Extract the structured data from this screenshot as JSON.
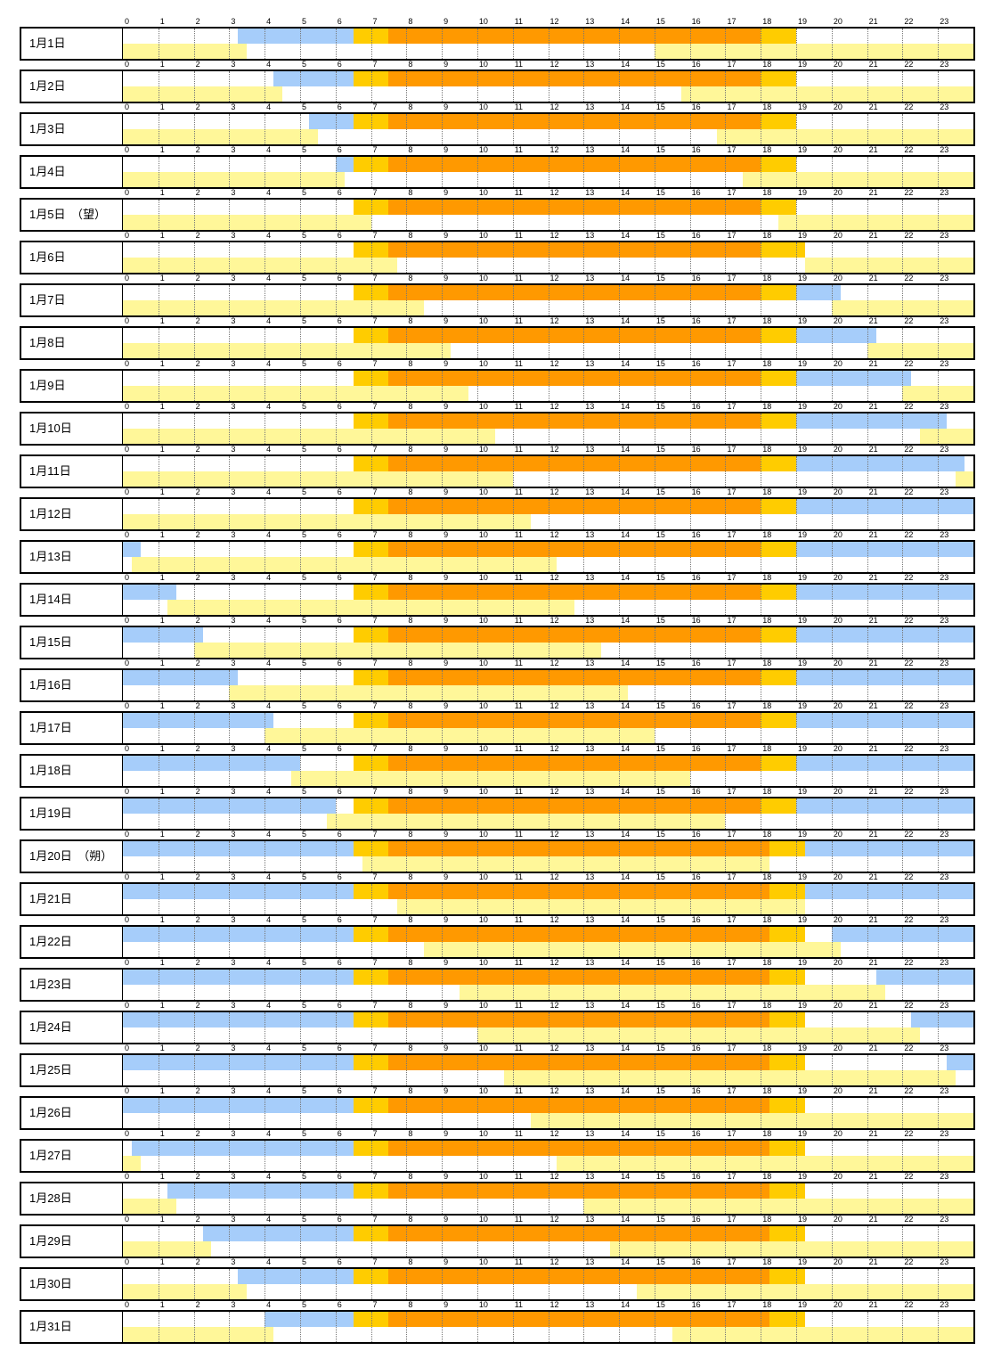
{
  "chart_data": {
    "type": "timeline",
    "hours": [
      "0",
      "1",
      "2",
      "3",
      "4",
      "5",
      "6",
      "7",
      "8",
      "9",
      "10",
      "11",
      "12",
      "13",
      "14",
      "15",
      "16",
      "17",
      "18",
      "19",
      "20",
      "21",
      "22",
      "23"
    ],
    "colors": {
      "moon": "#a6cdfa",
      "twilight": "#ffcc00",
      "day": "#ff9900",
      "moonlight": "#fff799"
    },
    "days": [
      {
        "label": "1月1日",
        "top": [
          [
            "moon",
            3.25,
            6.5
          ],
          [
            "twilight",
            6.5,
            7.5
          ],
          [
            "day",
            7.5,
            18.0
          ],
          [
            "twilight",
            18.0,
            19.0
          ]
        ],
        "bottom": [
          [
            "moonlight",
            0,
            3.5
          ],
          [
            "moonlight",
            15.0,
            24
          ]
        ]
      },
      {
        "label": "1月2日",
        "top": [
          [
            "moon",
            4.25,
            6.5
          ],
          [
            "twilight",
            6.5,
            7.5
          ],
          [
            "day",
            7.5,
            18.0
          ],
          [
            "twilight",
            18.0,
            19.0
          ]
        ],
        "bottom": [
          [
            "moonlight",
            0,
            4.5
          ],
          [
            "moonlight",
            15.75,
            24
          ]
        ]
      },
      {
        "label": "1月3日",
        "top": [
          [
            "moon",
            5.25,
            6.5
          ],
          [
            "twilight",
            6.5,
            7.5
          ],
          [
            "day",
            7.5,
            18.0
          ],
          [
            "twilight",
            18.0,
            19.0
          ]
        ],
        "bottom": [
          [
            "moonlight",
            0,
            5.5
          ],
          [
            "moonlight",
            16.75,
            24
          ]
        ]
      },
      {
        "label": "1月4日",
        "top": [
          [
            "moon",
            6.0,
            6.5
          ],
          [
            "twilight",
            6.5,
            7.5
          ],
          [
            "day",
            7.5,
            18.0
          ],
          [
            "twilight",
            18.0,
            19.0
          ]
        ],
        "bottom": [
          [
            "moonlight",
            0,
            6.25
          ],
          [
            "moonlight",
            17.5,
            24
          ]
        ]
      },
      {
        "label": "1月5日　（望）",
        "top": [
          [
            "twilight",
            6.5,
            7.5
          ],
          [
            "day",
            7.5,
            18.0
          ],
          [
            "twilight",
            18.0,
            19.0
          ]
        ],
        "bottom": [
          [
            "moonlight",
            0,
            7.0
          ],
          [
            "moonlight",
            18.5,
            24
          ]
        ]
      },
      {
        "label": "1月6日",
        "top": [
          [
            "twilight",
            6.5,
            7.5
          ],
          [
            "day",
            7.5,
            18.0
          ],
          [
            "twilight",
            18.0,
            19.25
          ]
        ],
        "bottom": [
          [
            "moonlight",
            0,
            7.75
          ],
          [
            "moonlight",
            19.25,
            24
          ]
        ]
      },
      {
        "label": "1月7日",
        "top": [
          [
            "twilight",
            6.5,
            7.5
          ],
          [
            "day",
            7.5,
            18.0
          ],
          [
            "twilight",
            18.0,
            19.0
          ],
          [
            "moon",
            19.0,
            20.25
          ]
        ],
        "bottom": [
          [
            "moonlight",
            0,
            8.5
          ],
          [
            "moonlight",
            20.0,
            24
          ]
        ]
      },
      {
        "label": "1月8日",
        "top": [
          [
            "twilight",
            6.5,
            7.5
          ],
          [
            "day",
            7.5,
            18.0
          ],
          [
            "twilight",
            18.0,
            19.0
          ],
          [
            "moon",
            19.0,
            21.25
          ]
        ],
        "bottom": [
          [
            "moonlight",
            0,
            9.25
          ],
          [
            "moonlight",
            21.0,
            24
          ]
        ]
      },
      {
        "label": "1月9日",
        "top": [
          [
            "twilight",
            6.5,
            7.5
          ],
          [
            "day",
            7.5,
            18.0
          ],
          [
            "twilight",
            18.0,
            19.0
          ],
          [
            "moon",
            19.0,
            22.25
          ]
        ],
        "bottom": [
          [
            "moonlight",
            0,
            9.75
          ],
          [
            "moonlight",
            22.0,
            24
          ]
        ]
      },
      {
        "label": "1月10日",
        "top": [
          [
            "twilight",
            6.5,
            7.5
          ],
          [
            "day",
            7.5,
            18.0
          ],
          [
            "twilight",
            18.0,
            19.0
          ],
          [
            "moon",
            19.0,
            23.25
          ]
        ],
        "bottom": [
          [
            "moonlight",
            0,
            10.5
          ],
          [
            "moonlight",
            22.5,
            24
          ]
        ]
      },
      {
        "label": "1月11日",
        "top": [
          [
            "twilight",
            6.5,
            7.5
          ],
          [
            "day",
            7.5,
            18.0
          ],
          [
            "twilight",
            18.0,
            19.0
          ],
          [
            "moon",
            19.0,
            23.75
          ]
        ],
        "bottom": [
          [
            "moonlight",
            0,
            11.0
          ],
          [
            "moonlight",
            23.5,
            24
          ]
        ]
      },
      {
        "label": "1月12日",
        "top": [
          [
            "twilight",
            6.5,
            7.5
          ],
          [
            "day",
            7.5,
            18.0
          ],
          [
            "twilight",
            18.0,
            19.0
          ],
          [
            "moon",
            19.0,
            24
          ]
        ],
        "bottom": [
          [
            "moonlight",
            0,
            11.5
          ]
        ]
      },
      {
        "label": "1月13日",
        "top": [
          [
            "moon",
            0,
            0.5
          ],
          [
            "twilight",
            6.5,
            7.5
          ],
          [
            "day",
            7.5,
            18.0
          ],
          [
            "twilight",
            18.0,
            19.0
          ],
          [
            "moon",
            19.0,
            24
          ]
        ],
        "bottom": [
          [
            "moonlight",
            0.25,
            12.25
          ]
        ]
      },
      {
        "label": "1月14日",
        "top": [
          [
            "moon",
            0,
            1.5
          ],
          [
            "twilight",
            6.5,
            7.5
          ],
          [
            "day",
            7.5,
            18.0
          ],
          [
            "twilight",
            18.0,
            19.0
          ],
          [
            "moon",
            19.0,
            24
          ]
        ],
        "bottom": [
          [
            "moonlight",
            1.25,
            12.75
          ]
        ]
      },
      {
        "label": "1月15日",
        "top": [
          [
            "moon",
            0,
            2.25
          ],
          [
            "twilight",
            6.5,
            7.5
          ],
          [
            "day",
            7.5,
            18.0
          ],
          [
            "twilight",
            18.0,
            19.0
          ],
          [
            "moon",
            19.0,
            24
          ]
        ],
        "bottom": [
          [
            "moonlight",
            2.0,
            13.5
          ]
        ]
      },
      {
        "label": "1月16日",
        "top": [
          [
            "moon",
            0,
            3.25
          ],
          [
            "twilight",
            6.5,
            7.5
          ],
          [
            "day",
            7.5,
            18.0
          ],
          [
            "twilight",
            18.0,
            19.0
          ],
          [
            "moon",
            19.0,
            24
          ]
        ],
        "bottom": [
          [
            "moonlight",
            3.0,
            14.25
          ]
        ]
      },
      {
        "label": "1月17日",
        "top": [
          [
            "moon",
            0,
            4.25
          ],
          [
            "twilight",
            6.5,
            7.5
          ],
          [
            "day",
            7.5,
            18.0
          ],
          [
            "twilight",
            18.0,
            19.0
          ],
          [
            "moon",
            19.0,
            24
          ]
        ],
        "bottom": [
          [
            "moonlight",
            4.0,
            15.0
          ]
        ]
      },
      {
        "label": "1月18日",
        "top": [
          [
            "moon",
            0,
            5.0
          ],
          [
            "twilight",
            6.5,
            7.5
          ],
          [
            "day",
            7.5,
            18.0
          ],
          [
            "twilight",
            18.0,
            19.0
          ],
          [
            "moon",
            19.0,
            24
          ]
        ],
        "bottom": [
          [
            "moonlight",
            4.75,
            16.0
          ]
        ]
      },
      {
        "label": "1月19日",
        "top": [
          [
            "moon",
            0,
            6.0
          ],
          [
            "twilight",
            6.5,
            7.5
          ],
          [
            "day",
            7.5,
            18.0
          ],
          [
            "twilight",
            18.0,
            19.0
          ],
          [
            "moon",
            19.0,
            24
          ]
        ],
        "bottom": [
          [
            "moonlight",
            5.75,
            17.0
          ]
        ]
      },
      {
        "label": "1月20日　（朔）",
        "top": [
          [
            "moon",
            0,
            6.5
          ],
          [
            "twilight",
            6.5,
            7.5
          ],
          [
            "day",
            7.5,
            18.25
          ],
          [
            "twilight",
            18.25,
            19.25
          ],
          [
            "moon",
            19.25,
            24
          ]
        ],
        "bottom": [
          [
            "moonlight",
            6.75,
            18.25
          ]
        ]
      },
      {
        "label": "1月21日",
        "top": [
          [
            "moon",
            0,
            6.5
          ],
          [
            "twilight",
            6.5,
            7.5
          ],
          [
            "day",
            7.5,
            18.25
          ],
          [
            "twilight",
            18.25,
            19.25
          ],
          [
            "moon",
            19.25,
            24
          ]
        ],
        "bottom": [
          [
            "moonlight",
            7.75,
            19.25
          ]
        ]
      },
      {
        "label": "1月22日",
        "top": [
          [
            "moon",
            0,
            6.5
          ],
          [
            "twilight",
            6.5,
            7.5
          ],
          [
            "day",
            7.5,
            18.25
          ],
          [
            "twilight",
            18.25,
            19.25
          ],
          [
            "moon",
            20.0,
            24
          ]
        ],
        "bottom": [
          [
            "moonlight",
            8.5,
            20.25
          ]
        ]
      },
      {
        "label": "1月23日",
        "top": [
          [
            "moon",
            0,
            6.5
          ],
          [
            "twilight",
            6.5,
            7.5
          ],
          [
            "day",
            7.5,
            18.25
          ],
          [
            "twilight",
            18.25,
            19.25
          ],
          [
            "moon",
            21.25,
            24
          ]
        ],
        "bottom": [
          [
            "moonlight",
            9.5,
            21.5
          ]
        ]
      },
      {
        "label": "1月24日",
        "top": [
          [
            "moon",
            0,
            6.5
          ],
          [
            "twilight",
            6.5,
            7.5
          ],
          [
            "day",
            7.5,
            18.25
          ],
          [
            "twilight",
            18.25,
            19.25
          ],
          [
            "moon",
            22.25,
            24
          ]
        ],
        "bottom": [
          [
            "moonlight",
            10.0,
            22.5
          ]
        ]
      },
      {
        "label": "1月25日",
        "top": [
          [
            "moon",
            0,
            6.5
          ],
          [
            "twilight",
            6.5,
            7.5
          ],
          [
            "day",
            7.5,
            18.25
          ],
          [
            "twilight",
            18.25,
            19.25
          ],
          [
            "moon",
            23.25,
            24
          ]
        ],
        "bottom": [
          [
            "moonlight",
            10.75,
            23.5
          ]
        ]
      },
      {
        "label": "1月26日",
        "top": [
          [
            "moon",
            0,
            6.5
          ],
          [
            "twilight",
            6.5,
            7.5
          ],
          [
            "day",
            7.5,
            18.25
          ],
          [
            "twilight",
            18.25,
            19.25
          ]
        ],
        "bottom": [
          [
            "moonlight",
            11.5,
            24
          ]
        ]
      },
      {
        "label": "1月27日",
        "top": [
          [
            "moon",
            0.25,
            6.5
          ],
          [
            "twilight",
            6.5,
            7.5
          ],
          [
            "day",
            7.5,
            18.25
          ],
          [
            "twilight",
            18.25,
            19.25
          ]
        ],
        "bottom": [
          [
            "moonlight",
            0,
            0.5
          ],
          [
            "moonlight",
            12.25,
            24
          ]
        ]
      },
      {
        "label": "1月28日",
        "top": [
          [
            "moon",
            1.25,
            6.5
          ],
          [
            "twilight",
            6.5,
            7.5
          ],
          [
            "day",
            7.5,
            18.25
          ],
          [
            "twilight",
            18.25,
            19.25
          ]
        ],
        "bottom": [
          [
            "moonlight",
            0,
            1.5
          ],
          [
            "moonlight",
            13.0,
            24
          ]
        ]
      },
      {
        "label": "1月29日",
        "top": [
          [
            "moon",
            2.25,
            6.5
          ],
          [
            "twilight",
            6.5,
            7.5
          ],
          [
            "day",
            7.5,
            18.25
          ],
          [
            "twilight",
            18.25,
            19.25
          ]
        ],
        "bottom": [
          [
            "moonlight",
            0,
            2.5
          ],
          [
            "moonlight",
            13.75,
            24
          ]
        ]
      },
      {
        "label": "1月30日",
        "top": [
          [
            "moon",
            3.25,
            6.5
          ],
          [
            "twilight",
            6.5,
            7.5
          ],
          [
            "day",
            7.5,
            18.25
          ],
          [
            "twilight",
            18.25,
            19.25
          ]
        ],
        "bottom": [
          [
            "moonlight",
            0,
            3.5
          ],
          [
            "moonlight",
            14.5,
            24
          ]
        ]
      },
      {
        "label": "1月31日",
        "top": [
          [
            "moon",
            4.0,
            6.5
          ],
          [
            "twilight",
            6.5,
            7.5
          ],
          [
            "day",
            7.5,
            18.25
          ],
          [
            "twilight",
            18.25,
            19.25
          ]
        ],
        "bottom": [
          [
            "moonlight",
            0,
            4.25
          ],
          [
            "moonlight",
            15.5,
            24
          ]
        ]
      }
    ]
  }
}
